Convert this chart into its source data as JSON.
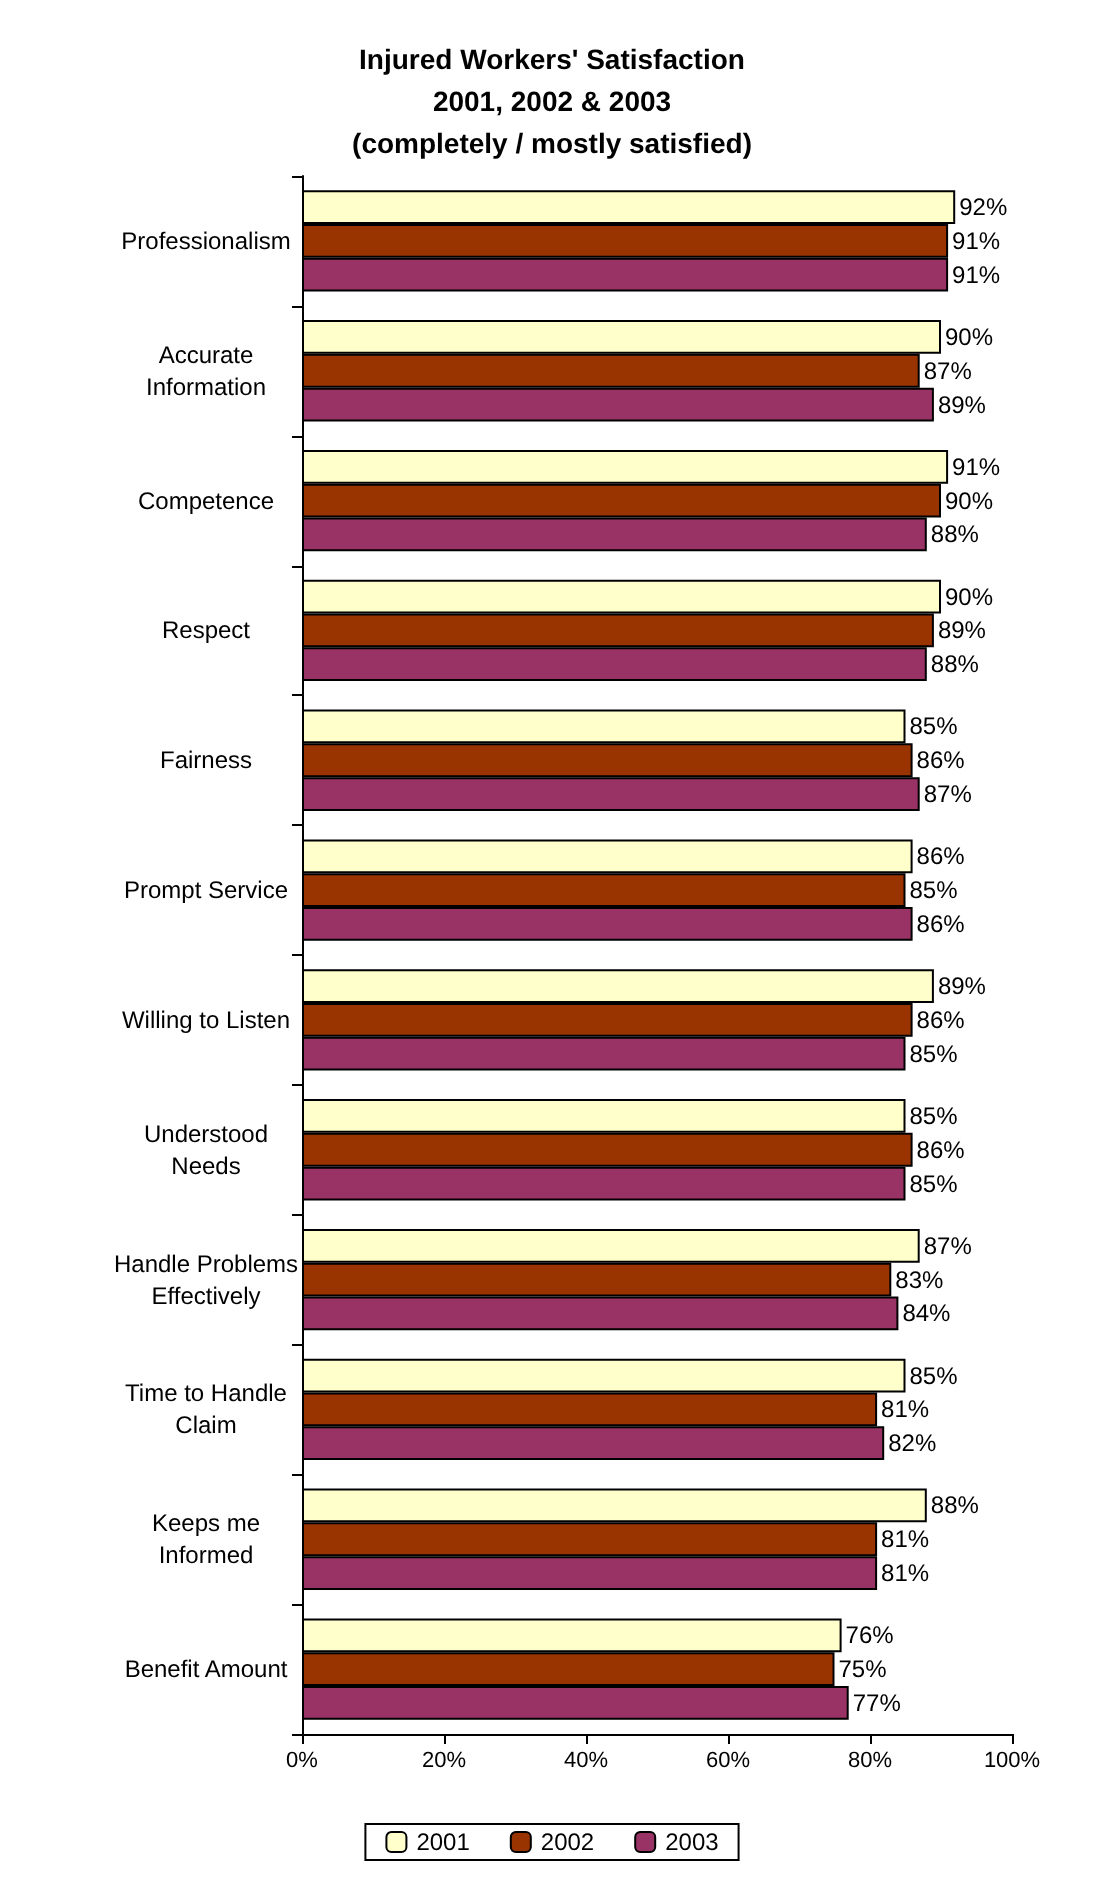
{
  "chart_data": {
    "type": "bar",
    "orientation": "horizontal",
    "title": "Injured Workers' Satisfaction\n2001, 2002 & 2003\n(completely / mostly satisfied)",
    "categories": [
      "Professionalism",
      "Accurate\nInformation",
      "Competence",
      "Respect",
      "Fairness",
      "Prompt Service",
      "Willing to Listen",
      "Understood\nNeeds",
      "Handle Problems\nEffectively",
      "Time to Handle\nClaim",
      "Keeps me\nInformed",
      "Benefit Amount"
    ],
    "series": [
      {
        "name": "2001",
        "color": "#ffffcc",
        "values": [
          92,
          90,
          91,
          90,
          85,
          86,
          89,
          85,
          87,
          85,
          88,
          76
        ],
        "value_labels": [
          "92%",
          "90%",
          "91%",
          "90%",
          "85%",
          "86%",
          "89%",
          "85%",
          "87%",
          "85%",
          "88%",
          "76%"
        ]
      },
      {
        "name": "2002",
        "color": "#993300",
        "values": [
          91,
          87,
          90,
          89,
          86,
          85,
          86,
          86,
          83,
          81,
          81,
          75
        ],
        "value_labels": [
          "91%",
          "87%",
          "90%",
          "89%",
          "86%",
          "85%",
          "86%",
          "86%",
          "83%",
          "81%",
          "81%",
          "75%"
        ]
      },
      {
        "name": "2003",
        "color": "#993366",
        "values": [
          91,
          89,
          88,
          88,
          87,
          86,
          85,
          85,
          84,
          82,
          81,
          77
        ],
        "value_labels": [
          "91%",
          "89%",
          "88%",
          "88%",
          "87%",
          "86%",
          "85%",
          "85%",
          "84%",
          "82%",
          "81%",
          "77%"
        ]
      }
    ],
    "xlim": [
      0,
      100
    ],
    "xticks": [
      {
        "value": 0,
        "label": "0%"
      },
      {
        "value": 20,
        "label": "20%"
      },
      {
        "value": 40,
        "label": "40%"
      },
      {
        "value": 60,
        "label": "60%"
      },
      {
        "value": 80,
        "label": "80%"
      },
      {
        "value": 100,
        "label": "100%"
      }
    ],
    "grid": false,
    "legend": "bottom"
  }
}
